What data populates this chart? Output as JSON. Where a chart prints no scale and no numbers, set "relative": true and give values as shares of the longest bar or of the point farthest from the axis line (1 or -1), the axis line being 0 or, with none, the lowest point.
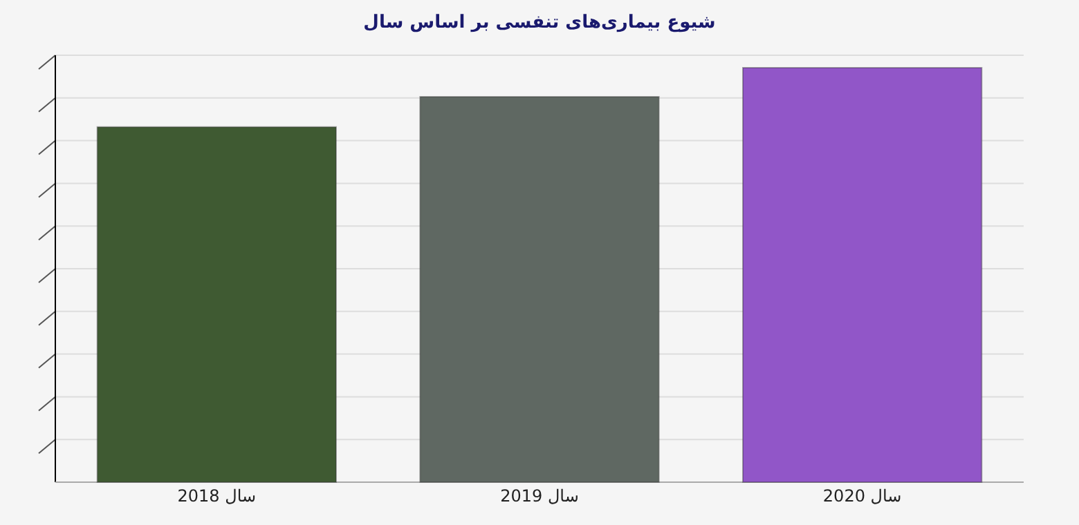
{
  "chart_data": {
    "type": "bar",
    "title": "شیوع بیماری‌های تنفسی بر اساس سال",
    "categories": [
      "سال 2018",
      "سال 2019",
      "سال 2020"
    ],
    "values": [
      0.857,
      0.93,
      1
    ],
    "colors": [
      "#3f5a32",
      "#5f6862",
      "#9156c8"
    ],
    "relative": true,
    "grid": "y"
  }
}
